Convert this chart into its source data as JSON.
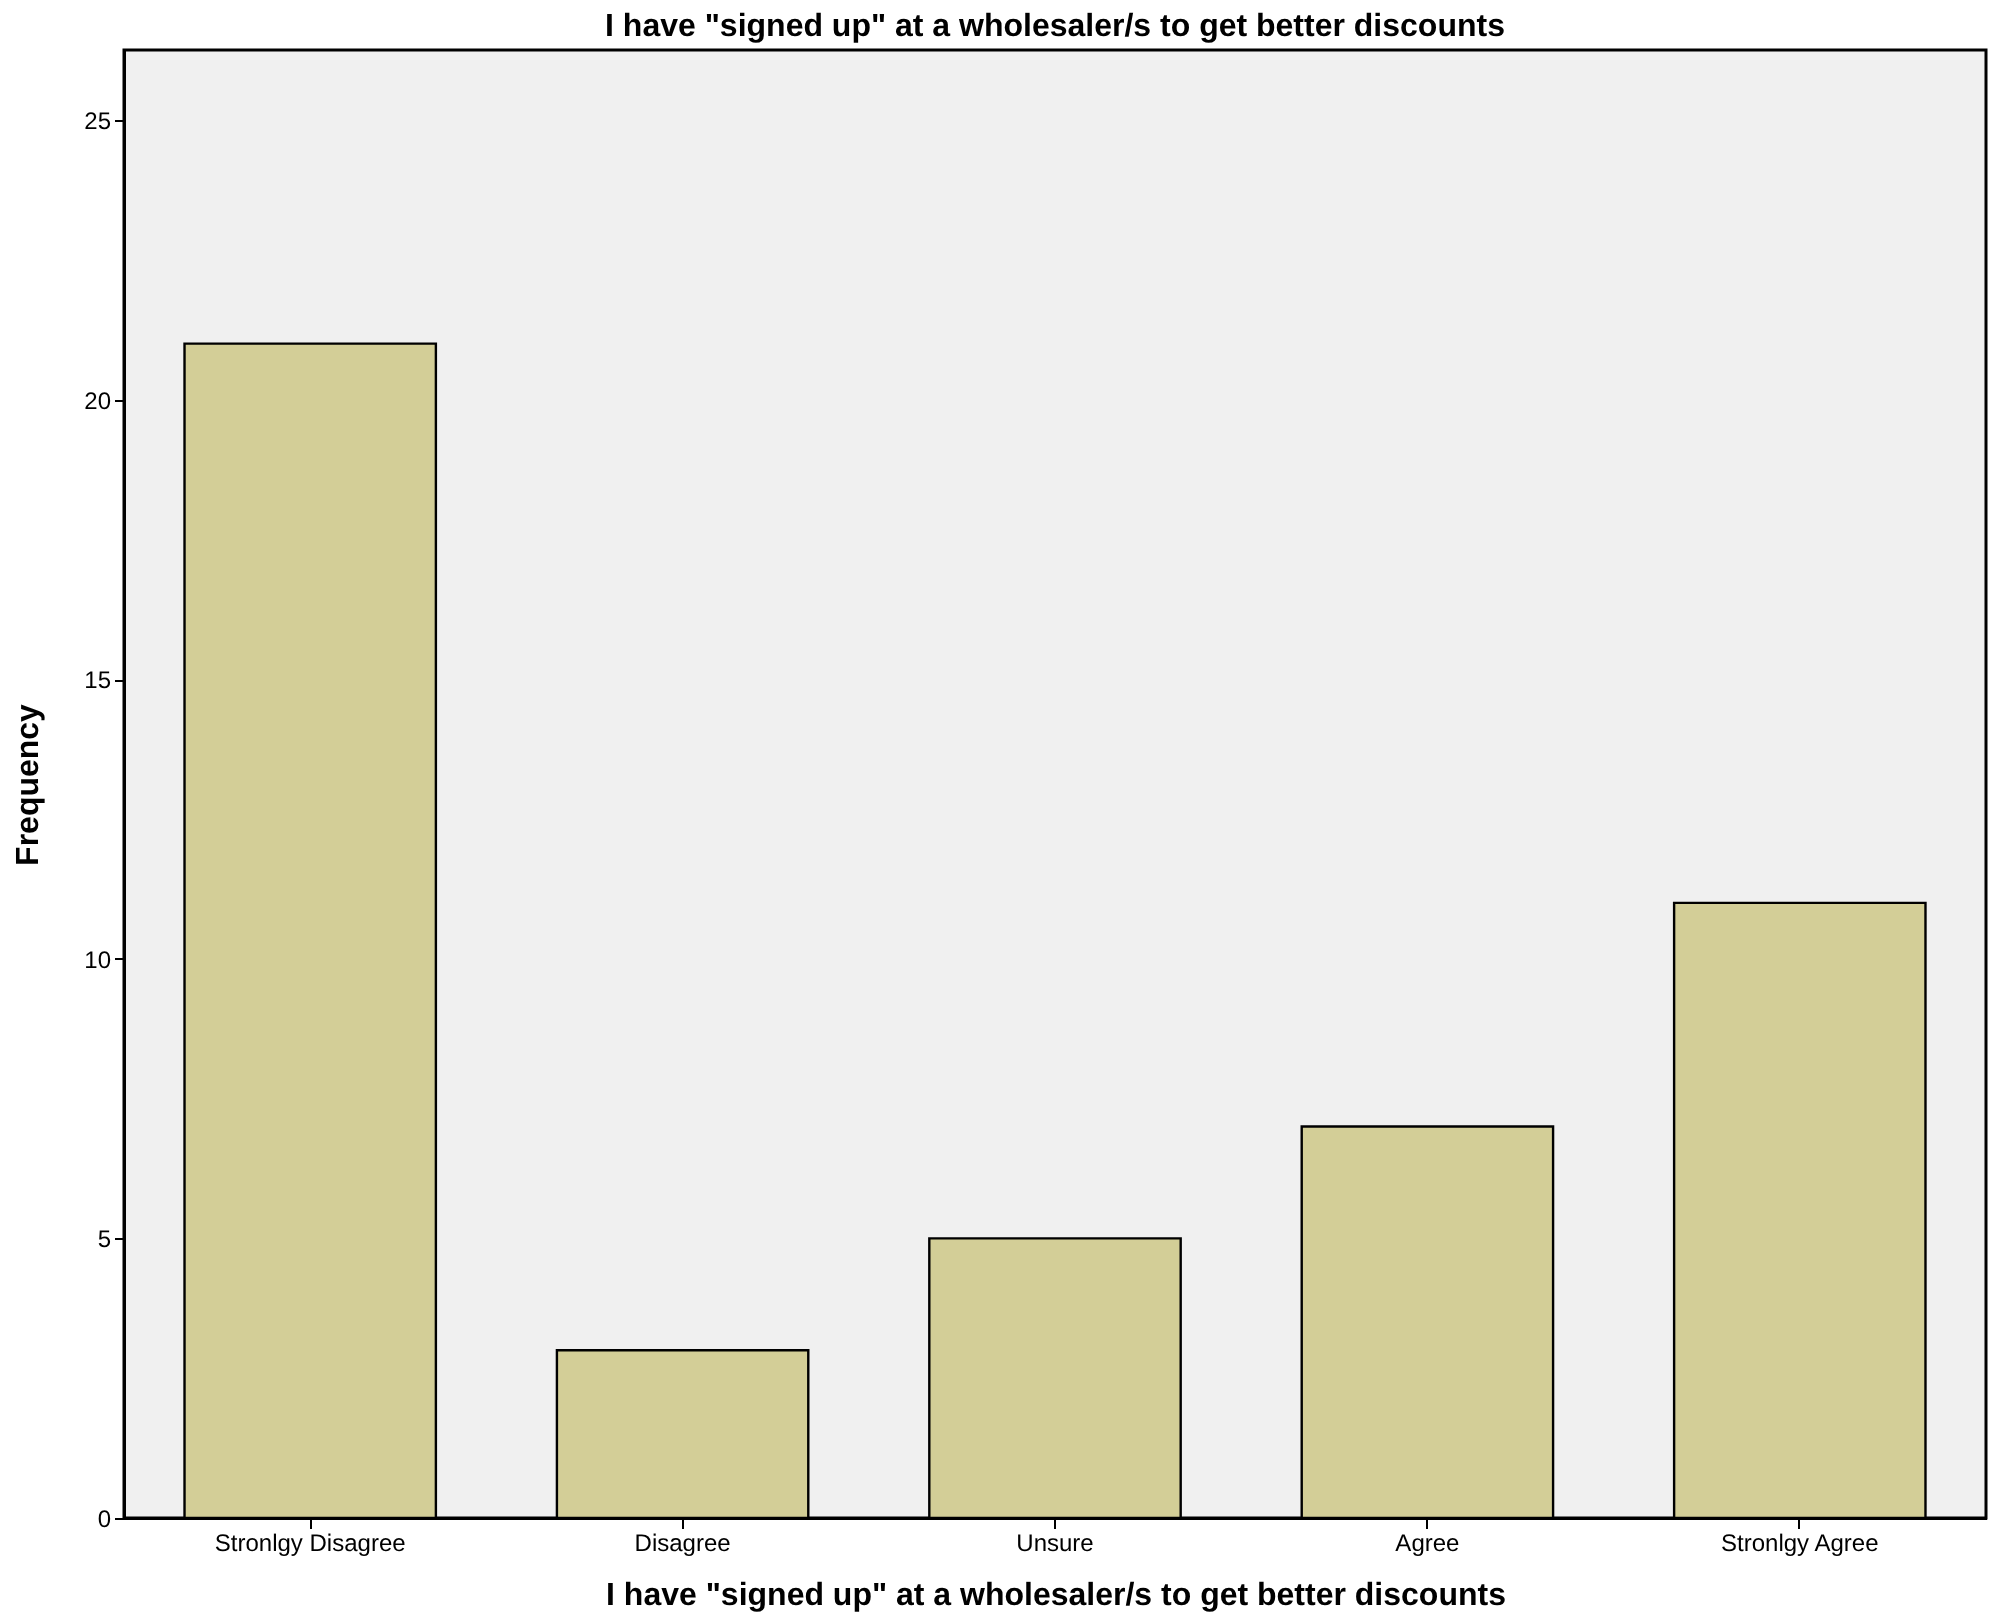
{
  "chart_data": {
    "type": "bar",
    "title": "I have \"signed up\" at a wholesaler/s to get better discounts",
    "xlabel": "I have \"signed up\" at a wholesaler/s to get better discounts",
    "ylabel": "Frequency",
    "categories": [
      "Stronlgy Disagree",
      "Disagree",
      "Unsure",
      "Agree",
      "Stronlgy Agree"
    ],
    "values": [
      21,
      3,
      5,
      7,
      11
    ],
    "color": "#d3ce97",
    "ylim": [
      0,
      26.25
    ],
    "yticks": [
      0,
      5,
      10,
      15,
      20,
      25
    ],
    "grid": false
  }
}
